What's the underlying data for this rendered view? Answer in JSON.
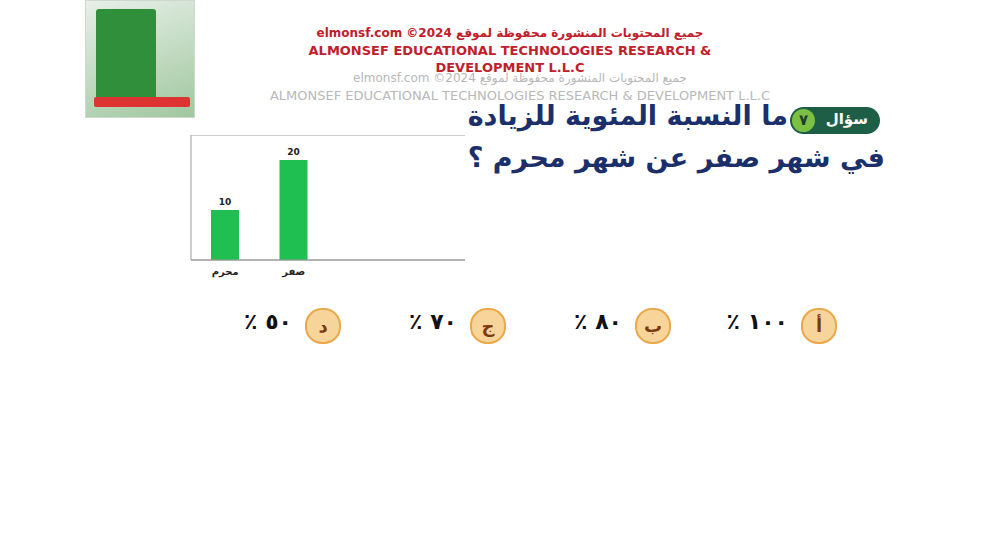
{
  "header": {
    "lines": [
      "جميع المحتويات المنشورة محفوظة لموقع elmonsf.com ©2024",
      "ALMONSEF EDUCATIONAL TECHNOLOGIES RESEARCH &",
      "DEVELOPMENT L.L.C"
    ]
  },
  "watermark": {
    "lines": [
      "جميع المحتويات المنشورة محفوظة لموقع elmonsf.com ©2024",
      "ALMONSEF EDUCATIONAL TECHNOLOGIES RESEARCH & DEVELOPMENT L.L.C"
    ]
  },
  "question": {
    "badge": "سؤال",
    "number": "٧",
    "lines": [
      "ما النسبة المئوية للزيادة",
      "في شهر صفر عن شهر محرم ؟"
    ]
  },
  "options": [
    {
      "letter": "أ",
      "text": "١٠٠ ٪"
    },
    {
      "letter": "ب",
      "text": "٨٠ ٪"
    },
    {
      "letter": "ج",
      "text": "٧٠ ٪"
    },
    {
      "letter": "د",
      "text": "٥٠ ٪"
    }
  ],
  "chart_data": {
    "type": "bar",
    "categories": [
      "محرم",
      "صفر",
      null,
      null
    ],
    "values": [
      10,
      20,
      null,
      null
    ],
    "color": "#1fbf52",
    "ylim": [
      0,
      25
    ],
    "yticks": [
      0,
      5,
      10,
      15,
      20,
      25
    ],
    "grid": true,
    "data_labels": true,
    "tick_labels": "x"
  }
}
